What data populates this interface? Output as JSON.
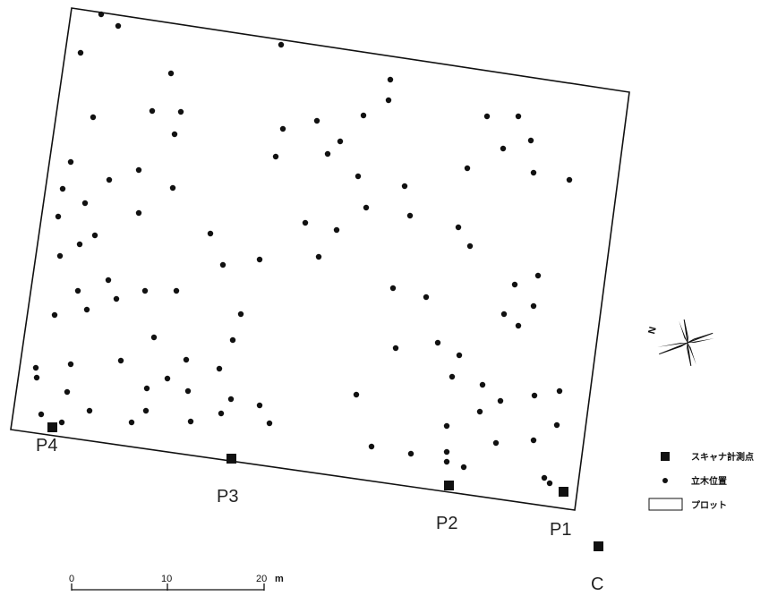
{
  "points": {
    "P1": "P1",
    "P2": "P2",
    "P3": "P3",
    "P4": "P4",
    "C": "C"
  },
  "compass": {
    "label": "N"
  },
  "legend": {
    "scanner": "スキャナ計測点",
    "tree": "立木位置",
    "plot": "プロット"
  },
  "scalebar": {
    "ticks": [
      "0",
      "10",
      "20"
    ],
    "unit": "m"
  },
  "colors": {
    "ink": "#111111"
  }
}
